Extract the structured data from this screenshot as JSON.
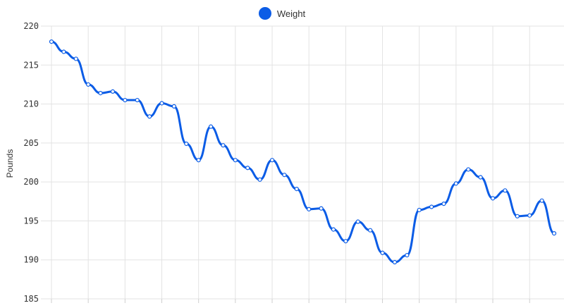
{
  "chart_data": {
    "type": "line",
    "title": "",
    "xlabel": "",
    "ylabel": "Pounds",
    "ylim": [
      185,
      220
    ],
    "yticks": [
      220,
      215,
      210,
      205,
      200,
      195,
      190,
      185
    ],
    "grid": true,
    "legend_position": "top-center",
    "series": [
      {
        "name": "Weight",
        "color": "#0b5ce6",
        "values": [
          218.0,
          216.7,
          215.8,
          212.5,
          211.4,
          211.6,
          210.5,
          210.5,
          208.4,
          210.1,
          209.7,
          204.9,
          202.8,
          207.1,
          204.7,
          202.8,
          201.8,
          200.3,
          202.8,
          200.9,
          199.1,
          196.5,
          196.6,
          193.9,
          192.4,
          194.9,
          193.8,
          190.9,
          189.7,
          190.6,
          196.4,
          196.8,
          197.2,
          199.8,
          201.6,
          200.6,
          197.9,
          198.9,
          195.6,
          195.7,
          197.6,
          193.4
        ]
      }
    ]
  }
}
